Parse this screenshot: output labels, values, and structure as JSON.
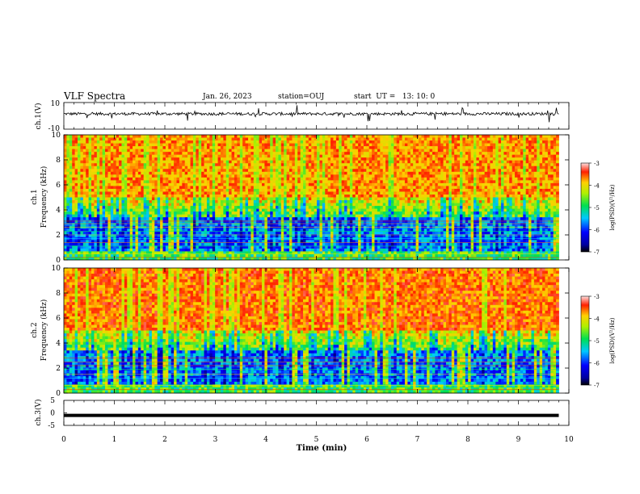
{
  "header": {
    "title": "VLF Spectra",
    "date": "Jan. 26, 2023",
    "station": "station=OUJ",
    "start": "start  UT =   13: 10: 0"
  },
  "chart_data": [
    {
      "type": "line",
      "panel": "ch1-waveform",
      "ylabel": "ch.1(V)",
      "ylim": [
        -10,
        10
      ],
      "y_ticks": [
        "10",
        "-10"
      ],
      "xlim": [
        0,
        10
      ],
      "baseline": 1.5,
      "note": "noisy waveform trace"
    },
    {
      "type": "heatmap",
      "panel": "ch1-spectrogram",
      "ylabel_top": "ch.1",
      "ylabel": "Frequency (kHz)",
      "ylim": [
        0,
        10
      ],
      "y_ticks": [
        "0",
        "2",
        "4",
        "6",
        "8",
        "10"
      ],
      "xlim": [
        0,
        10
      ],
      "data_end_min": 9.8,
      "colorbar": {
        "label": "log(PSD)(V²/Hz)",
        "range": [
          -7,
          -3
        ],
        "ticks": [
          "-3",
          "-4",
          "-5",
          "-6",
          "-7"
        ]
      }
    },
    {
      "type": "heatmap",
      "panel": "ch2-spectrogram",
      "ylabel_top": "ch.2",
      "ylabel": "Frequency (kHz)",
      "ylim": [
        0,
        10
      ],
      "y_ticks": [
        "0",
        "2",
        "4",
        "6",
        "8",
        "10"
      ],
      "xlim": [
        0,
        10
      ],
      "data_end_min": 9.8,
      "colorbar": {
        "label": "log(PSD)(V²/Hz)",
        "range": [
          -7,
          -3
        ],
        "ticks": [
          "-3",
          "-4",
          "-5",
          "-6",
          "-7"
        ]
      }
    },
    {
      "type": "line",
      "panel": "ch3-waveform",
      "ylabel": "ch.3(V)",
      "ylim": [
        -5,
        5
      ],
      "y_ticks": [
        "5",
        "0",
        "-5"
      ],
      "xlim": [
        0,
        10
      ],
      "value": -1,
      "xlabel": "Time (min)",
      "x_ticks": [
        "0",
        "1",
        "2",
        "3",
        "4",
        "5",
        "6",
        "7",
        "8",
        "9",
        "10"
      ]
    }
  ]
}
